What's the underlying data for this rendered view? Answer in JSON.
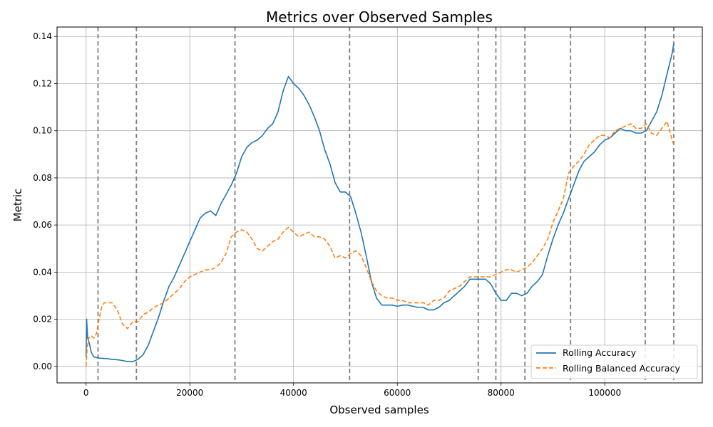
{
  "chart_data": {
    "type": "line",
    "title": "Metrics over Observed Samples",
    "xlabel": "Observed samples",
    "ylabel": "Metric",
    "xlim": [
      -5600,
      118800
    ],
    "ylim": [
      -0.007,
      0.144
    ],
    "xticks": [
      0,
      20000,
      40000,
      60000,
      80000,
      100000
    ],
    "yticks": [
      0.0,
      0.02,
      0.04,
      0.06,
      0.08,
      0.1,
      0.12,
      0.14
    ],
    "ytick_labels": [
      "0.00",
      "0.02",
      "0.04",
      "0.06",
      "0.08",
      "0.10",
      "0.12",
      "0.14"
    ],
    "grid": true,
    "legend_position": "lower-right",
    "vertical_lines": [
      2300,
      9700,
      28700,
      50800,
      75600,
      79000,
      84600,
      93400,
      107800,
      113300
    ],
    "series": [
      {
        "name": "Rolling Accuracy",
        "color": "#1f77b4",
        "style": "solid",
        "points": [
          [
            0,
            0.004
          ],
          [
            100,
            0.02
          ],
          [
            300,
            0.012
          ],
          [
            600,
            0.01
          ],
          [
            1000,
            0.006
          ],
          [
            1500,
            0.004
          ],
          [
            2500,
            0.0035
          ],
          [
            4000,
            0.0033
          ],
          [
            5000,
            0.003
          ],
          [
            6000,
            0.0028
          ],
          [
            7000,
            0.0025
          ],
          [
            8000,
            0.002
          ],
          [
            9000,
            0.002
          ],
          [
            10000,
            0.003
          ],
          [
            11000,
            0.005
          ],
          [
            12000,
            0.009
          ],
          [
            13000,
            0.015
          ],
          [
            14000,
            0.021
          ],
          [
            15000,
            0.028
          ],
          [
            16000,
            0.034
          ],
          [
            17000,
            0.038
          ],
          [
            18000,
            0.043
          ],
          [
            19000,
            0.048
          ],
          [
            20000,
            0.053
          ],
          [
            21000,
            0.058
          ],
          [
            22000,
            0.063
          ],
          [
            23000,
            0.065
          ],
          [
            24000,
            0.066
          ],
          [
            25000,
            0.064
          ],
          [
            26000,
            0.069
          ],
          [
            27000,
            0.073
          ],
          [
            28000,
            0.077
          ],
          [
            29000,
            0.082
          ],
          [
            30000,
            0.089
          ],
          [
            31000,
            0.093
          ],
          [
            32000,
            0.095
          ],
          [
            33000,
            0.096
          ],
          [
            34000,
            0.098
          ],
          [
            35000,
            0.101
          ],
          [
            36000,
            0.103
          ],
          [
            37000,
            0.108
          ],
          [
            38000,
            0.117
          ],
          [
            39000,
            0.123
          ],
          [
            40000,
            0.12
          ],
          [
            41000,
            0.118
          ],
          [
            42000,
            0.115
          ],
          [
            43000,
            0.111
          ],
          [
            44000,
            0.106
          ],
          [
            45000,
            0.1
          ],
          [
            46000,
            0.092
          ],
          [
            47000,
            0.086
          ],
          [
            48000,
            0.078
          ],
          [
            49000,
            0.074
          ],
          [
            50000,
            0.074
          ],
          [
            51000,
            0.072
          ],
          [
            52000,
            0.065
          ],
          [
            53000,
            0.057
          ],
          [
            54000,
            0.047
          ],
          [
            55000,
            0.036
          ],
          [
            56000,
            0.029
          ],
          [
            57000,
            0.026
          ],
          [
            58000,
            0.026
          ],
          [
            59000,
            0.026
          ],
          [
            60000,
            0.0255
          ],
          [
            61000,
            0.026
          ],
          [
            62000,
            0.026
          ],
          [
            63000,
            0.0255
          ],
          [
            64000,
            0.025
          ],
          [
            65000,
            0.025
          ],
          [
            66000,
            0.024
          ],
          [
            67000,
            0.024
          ],
          [
            68000,
            0.025
          ],
          [
            69000,
            0.027
          ],
          [
            70000,
            0.028
          ],
          [
            71000,
            0.03
          ],
          [
            72000,
            0.032
          ],
          [
            73000,
            0.034
          ],
          [
            74000,
            0.037
          ],
          [
            75000,
            0.037
          ],
          [
            76000,
            0.037
          ],
          [
            77000,
            0.037
          ],
          [
            78000,
            0.035
          ],
          [
            79000,
            0.031
          ],
          [
            80000,
            0.028
          ],
          [
            81000,
            0.028
          ],
          [
            82000,
            0.031
          ],
          [
            83000,
            0.031
          ],
          [
            84000,
            0.03
          ],
          [
            85000,
            0.031
          ],
          [
            86000,
            0.034
          ],
          [
            87000,
            0.036
          ],
          [
            88000,
            0.039
          ],
          [
            89000,
            0.047
          ],
          [
            90000,
            0.054
          ],
          [
            91000,
            0.06
          ],
          [
            92000,
            0.065
          ],
          [
            93000,
            0.071
          ],
          [
            94000,
            0.077
          ],
          [
            95000,
            0.083
          ],
          [
            96000,
            0.087
          ],
          [
            97000,
            0.089
          ],
          [
            98000,
            0.091
          ],
          [
            99000,
            0.094
          ],
          [
            100000,
            0.096
          ],
          [
            101000,
            0.097
          ],
          [
            102000,
            0.099
          ],
          [
            103000,
            0.101
          ],
          [
            104000,
            0.1
          ],
          [
            105000,
            0.1
          ],
          [
            106000,
            0.099
          ],
          [
            107000,
            0.099
          ],
          [
            108000,
            0.1
          ],
          [
            109000,
            0.104
          ],
          [
            110000,
            0.108
          ],
          [
            111000,
            0.115
          ],
          [
            112000,
            0.124
          ],
          [
            113000,
            0.133
          ],
          [
            113300,
            0.137
          ]
        ]
      },
      {
        "name": "Rolling Balanced Accuracy",
        "color": "#ff7f0e",
        "style": "dashed",
        "points": [
          [
            0,
            0.0
          ],
          [
            200,
            0.008
          ],
          [
            500,
            0.012
          ],
          [
            1000,
            0.013
          ],
          [
            1500,
            0.012
          ],
          [
            2000,
            0.014
          ],
          [
            2500,
            0.02
          ],
          [
            3000,
            0.025
          ],
          [
            3500,
            0.027
          ],
          [
            4000,
            0.027
          ],
          [
            5000,
            0.027
          ],
          [
            6000,
            0.024
          ],
          [
            7000,
            0.018
          ],
          [
            8000,
            0.016
          ],
          [
            9000,
            0.019
          ],
          [
            10000,
            0.019
          ],
          [
            11000,
            0.022
          ],
          [
            12000,
            0.023
          ],
          [
            13000,
            0.025
          ],
          [
            14000,
            0.026
          ],
          [
            15000,
            0.027
          ],
          [
            16000,
            0.029
          ],
          [
            17000,
            0.031
          ],
          [
            18000,
            0.033
          ],
          [
            19000,
            0.036
          ],
          [
            20000,
            0.038
          ],
          [
            21000,
            0.039
          ],
          [
            22000,
            0.04
          ],
          [
            23000,
            0.041
          ],
          [
            24000,
            0.041
          ],
          [
            25000,
            0.042
          ],
          [
            26000,
            0.044
          ],
          [
            27000,
            0.048
          ],
          [
            28000,
            0.055
          ],
          [
            29000,
            0.057
          ],
          [
            30000,
            0.058
          ],
          [
            31000,
            0.057
          ],
          [
            32000,
            0.054
          ],
          [
            33000,
            0.05
          ],
          [
            34000,
            0.049
          ],
          [
            35000,
            0.051
          ],
          [
            36000,
            0.053
          ],
          [
            37000,
            0.054
          ],
          [
            38000,
            0.057
          ],
          [
            39000,
            0.059
          ],
          [
            40000,
            0.057
          ],
          [
            41000,
            0.055
          ],
          [
            42000,
            0.056
          ],
          [
            43000,
            0.057
          ],
          [
            44000,
            0.055
          ],
          [
            45000,
            0.055
          ],
          [
            46000,
            0.054
          ],
          [
            47000,
            0.051
          ],
          [
            48000,
            0.046
          ],
          [
            49000,
            0.047
          ],
          [
            50000,
            0.046
          ],
          [
            51000,
            0.048
          ],
          [
            52000,
            0.049
          ],
          [
            53000,
            0.047
          ],
          [
            54000,
            0.042
          ],
          [
            55000,
            0.036
          ],
          [
            56000,
            0.032
          ],
          [
            57000,
            0.03
          ],
          [
            58000,
            0.029
          ],
          [
            59000,
            0.029
          ],
          [
            60000,
            0.028
          ],
          [
            61000,
            0.028
          ],
          [
            62000,
            0.027
          ],
          [
            63000,
            0.027
          ],
          [
            64000,
            0.027
          ],
          [
            65000,
            0.027
          ],
          [
            66000,
            0.026
          ],
          [
            67000,
            0.028
          ],
          [
            68000,
            0.028
          ],
          [
            69000,
            0.029
          ],
          [
            70000,
            0.032
          ],
          [
            71000,
            0.033
          ],
          [
            72000,
            0.034
          ],
          [
            73000,
            0.036
          ],
          [
            74000,
            0.038
          ],
          [
            75000,
            0.038
          ],
          [
            76000,
            0.038
          ],
          [
            77000,
            0.038
          ],
          [
            78000,
            0.038
          ],
          [
            79000,
            0.039
          ],
          [
            80000,
            0.04
          ],
          [
            81000,
            0.041
          ],
          [
            82000,
            0.041
          ],
          [
            83000,
            0.04
          ],
          [
            84000,
            0.041
          ],
          [
            85000,
            0.042
          ],
          [
            86000,
            0.044
          ],
          [
            87000,
            0.047
          ],
          [
            88000,
            0.05
          ],
          [
            89000,
            0.054
          ],
          [
            90000,
            0.061
          ],
          [
            91000,
            0.066
          ],
          [
            92000,
            0.071
          ],
          [
            93000,
            0.082
          ],
          [
            94000,
            0.085
          ],
          [
            95000,
            0.087
          ],
          [
            96000,
            0.09
          ],
          [
            97000,
            0.094
          ],
          [
            98000,
            0.096
          ],
          [
            99000,
            0.098
          ],
          [
            100000,
            0.098
          ],
          [
            101000,
            0.097
          ],
          [
            102000,
            0.1
          ],
          [
            103000,
            0.101
          ],
          [
            104000,
            0.102
          ],
          [
            105000,
            0.103
          ],
          [
            106000,
            0.101
          ],
          [
            107000,
            0.101
          ],
          [
            108000,
            0.103
          ],
          [
            109000,
            0.099
          ],
          [
            110000,
            0.098
          ],
          [
            111000,
            0.101
          ],
          [
            112000,
            0.104
          ],
          [
            112500,
            0.1
          ],
          [
            113000,
            0.096
          ],
          [
            113300,
            0.094
          ]
        ]
      }
    ]
  }
}
